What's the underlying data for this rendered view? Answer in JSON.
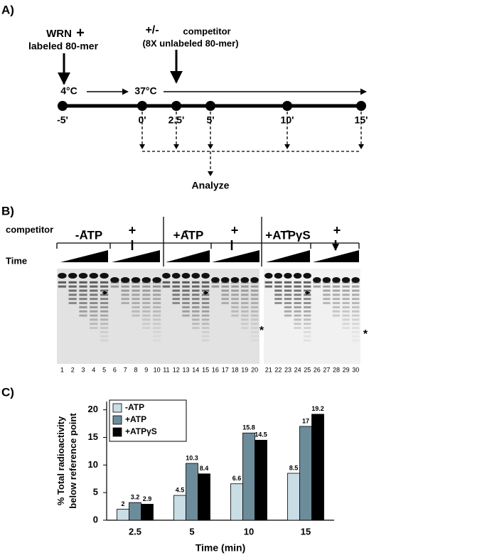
{
  "panel_a": {
    "label": "A)",
    "wrn": "WRN",
    "wrn_plus": "+",
    "labeled": "labeled 80-mer",
    "competitor_sign": "+/-",
    "competitor": "competitor",
    "competitor_note": "(8X unlabeled 80-mer)",
    "temps": [
      "4°C",
      "37°C"
    ],
    "timepoints": [
      "-5'",
      "0'",
      "2.5'",
      "5'",
      "10'",
      "15'"
    ],
    "analyze": "Analyze"
  },
  "panel_b": {
    "label": "B)",
    "conditions": [
      "-ATP",
      "+ATP",
      "+ATPγS"
    ],
    "competitor": "competitor",
    "competitor_signs": [
      "-",
      "+",
      "-",
      "+",
      "-",
      "+"
    ],
    "time": "Time",
    "lanes": [
      "1",
      "2",
      "3",
      "4",
      "5",
      "6",
      "7",
      "8",
      "9",
      "10",
      "11",
      "12",
      "13",
      "14",
      "15",
      "16",
      "17",
      "18",
      "19",
      "20",
      "21",
      "22",
      "23",
      "24",
      "25",
      "26",
      "27",
      "28",
      "29",
      "30"
    ],
    "asterisks": [
      "*",
      "*"
    ]
  },
  "panel_c_label": "C)",
  "chart_data": {
    "type": "bar",
    "ylabel": [
      "% Total radioactivity",
      "below reference point"
    ],
    "xlabel": "Time (min)",
    "categories": [
      "2.5",
      "5",
      "10",
      "15"
    ],
    "series": [
      {
        "name": "-ATP",
        "color": "#c9dde5",
        "values": [
          2,
          4.5,
          6.6,
          8.5
        ]
      },
      {
        "name": "+ATP",
        "color": "#6c8c9a",
        "values": [
          3.2,
          10.3,
          15.8,
          17
        ]
      },
      {
        "name": "+ATPγS",
        "color": "#000000",
        "values": [
          2.9,
          8.4,
          14.5,
          19.2
        ]
      }
    ],
    "ylim": [
      0,
      21.5
    ],
    "yticks": [
      0,
      5,
      10,
      15,
      20
    ],
    "legend": "upper-left"
  }
}
